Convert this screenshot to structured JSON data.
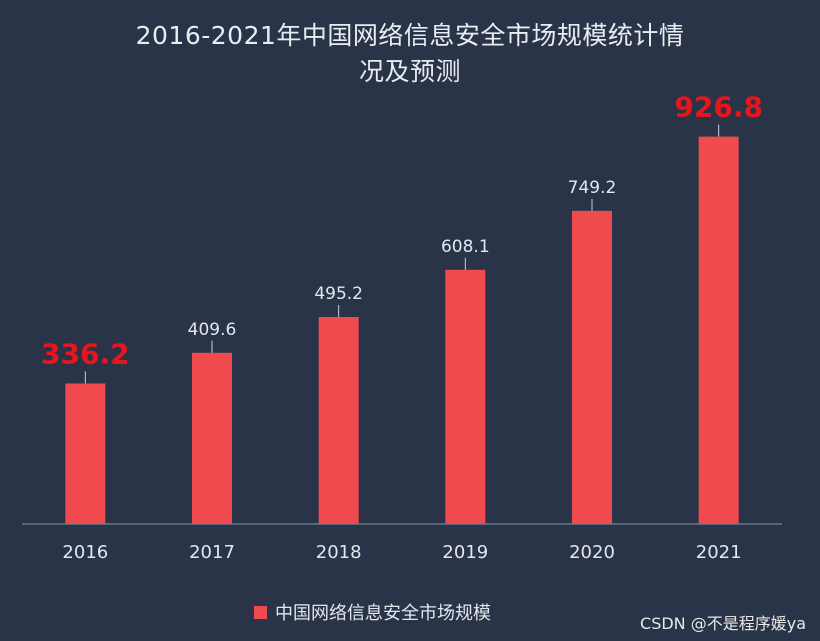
{
  "chart_data": {
    "type": "bar",
    "title_lines": [
      "2016-2021年中国网络信息安全市场规模统计情",
      "况及预测"
    ],
    "categories": [
      "2016",
      "2017",
      "2018",
      "2019",
      "2020",
      "2021"
    ],
    "series": [
      {
        "name": "中国网络信息安全市场规模",
        "values": [
          336.2,
          409.6,
          495.2,
          608.1,
          749.2,
          926.8
        ]
      }
    ],
    "data_labels": [
      "336.2",
      "409.6",
      "495.2",
      "608.1",
      "749.2",
      "926.8"
    ],
    "highlighted_labels": [
      "2016",
      "2021"
    ],
    "ylim": [
      0,
      1000
    ],
    "grid": false,
    "legend_position": "bottom"
  },
  "colors": {
    "background": "#2a3448",
    "bar": "#ef4a4d",
    "highlight_label": "#e8161c",
    "label": "#e3e6ee",
    "axis": "#8a93a6"
  },
  "watermark": "CSDN @不是程序媛ya"
}
